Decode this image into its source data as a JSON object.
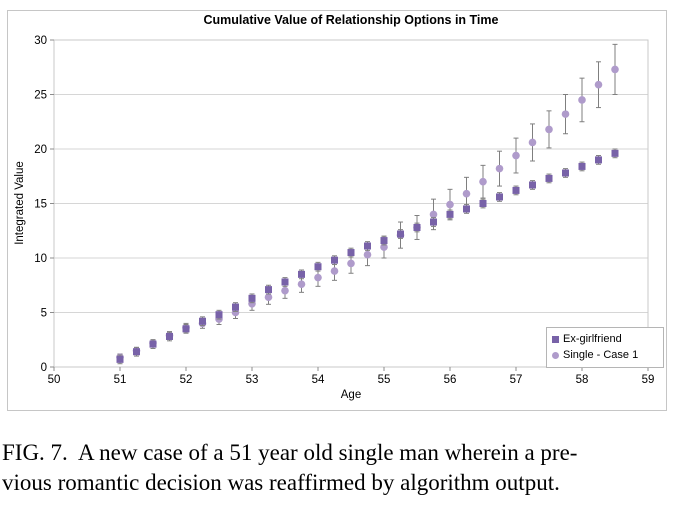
{
  "colors": {
    "gridline": "#d6d6d6",
    "plot_border": "#c9c9c9",
    "tick": "#8c8c8c",
    "error_bar": "#7f7f7f",
    "ex_girlfriend": "#7862A8",
    "single_case1": "#AF9BCB"
  },
  "caption": {
    "line1": "FIG. 7.  A new case of a 51 year old single man wherein a pre-",
    "line2": "vious romantic decision was reaffirmed by algorithm output."
  },
  "chart_data": {
    "type": "scatter",
    "title": "Cumulative Value of Relationship Options in Time",
    "xlabel": "Age",
    "ylabel": "Integrated Value",
    "xlim": [
      50,
      59
    ],
    "ylim": [
      0,
      30
    ],
    "x_ticks": [
      50,
      51,
      52,
      53,
      54,
      55,
      56,
      57,
      58,
      59
    ],
    "y_ticks": [
      0,
      5,
      10,
      15,
      20,
      25,
      30
    ],
    "grid": "horizontal",
    "legend_position": "bottom-right",
    "x": [
      51.0,
      51.25,
      51.5,
      51.75,
      52.0,
      52.25,
      52.5,
      52.75,
      53.0,
      53.25,
      53.5,
      53.75,
      54.0,
      54.25,
      54.5,
      54.75,
      55.0,
      55.25,
      55.5,
      55.75,
      56.0,
      56.25,
      56.5,
      56.75,
      57.0,
      57.25,
      57.5,
      57.75,
      58.0,
      58.25,
      58.5
    ],
    "series": [
      {
        "name": "Ex-girlfriend",
        "marker": "square",
        "color": "#7862A8",
        "values": [
          0.7,
          1.4,
          2.1,
          2.8,
          3.5,
          4.2,
          4.8,
          5.5,
          6.3,
          7.1,
          7.8,
          8.5,
          9.2,
          9.8,
          10.5,
          11.1,
          11.6,
          12.2,
          12.8,
          13.3,
          14.0,
          14.5,
          15.0,
          15.6,
          16.2,
          16.7,
          17.3,
          17.8,
          18.4,
          19.0,
          19.6
        ],
        "errors": [
          0.4,
          0.4,
          0.4,
          0.4,
          0.4,
          0.4,
          0.4,
          0.4,
          0.4,
          0.4,
          0.4,
          0.4,
          0.4,
          0.4,
          0.4,
          0.4,
          0.4,
          0.4,
          0.4,
          0.4,
          0.4,
          0.4,
          0.4,
          0.4,
          0.4,
          0.4,
          0.4,
          0.4,
          0.4,
          0.4,
          0.4
        ]
      },
      {
        "name": "Single - Case 1",
        "marker": "circle",
        "color": "#AF9BCB",
        "values": [
          0.9,
          1.5,
          2.2,
          2.9,
          3.6,
          4.0,
          4.4,
          5.0,
          5.8,
          6.4,
          7.0,
          7.6,
          8.2,
          8.8,
          9.5,
          10.3,
          11.0,
          12.1,
          12.8,
          14.0,
          14.9,
          15.9,
          17.0,
          18.2,
          19.4,
          20.6,
          21.8,
          23.2,
          24.5,
          25.9,
          27.3
        ],
        "errors": [
          0.3,
          0.3,
          0.3,
          0.35,
          0.4,
          0.45,
          0.5,
          0.55,
          0.6,
          0.65,
          0.7,
          0.75,
          0.8,
          0.85,
          0.9,
          1.0,
          1.0,
          1.2,
          1.1,
          1.4,
          1.4,
          1.5,
          1.5,
          1.6,
          1.6,
          1.7,
          1.7,
          1.8,
          2.0,
          2.1,
          2.3
        ]
      }
    ]
  }
}
